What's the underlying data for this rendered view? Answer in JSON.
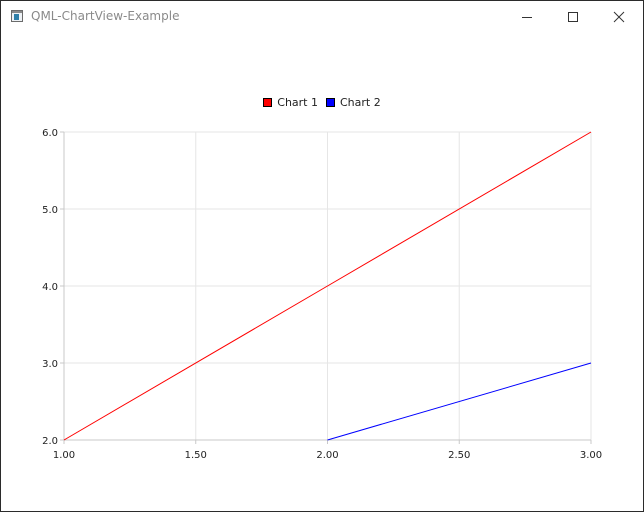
{
  "window": {
    "title": "QML-ChartView-Example",
    "minimize_icon": "minimize-icon",
    "maximize_icon": "maximize-icon",
    "close_icon": "close-icon"
  },
  "chart_data": {
    "type": "line",
    "title": "",
    "xlabel": "",
    "ylabel": "",
    "xlim": [
      1.0,
      3.0
    ],
    "ylim": [
      2.0,
      6.0
    ],
    "x_ticks": [
      "1.00",
      "1.50",
      "2.00",
      "2.50",
      "3.00"
    ],
    "y_ticks": [
      "2.0",
      "3.0",
      "4.0",
      "5.0",
      "6.0"
    ],
    "grid": true,
    "legend_position": "top-center",
    "series": [
      {
        "name": "Chart 1",
        "color": "#ff0000",
        "x": [
          1.0,
          2.0,
          3.0
        ],
        "y": [
          2.0,
          4.0,
          6.0
        ]
      },
      {
        "name": "Chart 2",
        "color": "#0000ff",
        "x": [
          2.0,
          3.0
        ],
        "y": [
          2.0,
          3.0
        ]
      }
    ]
  }
}
